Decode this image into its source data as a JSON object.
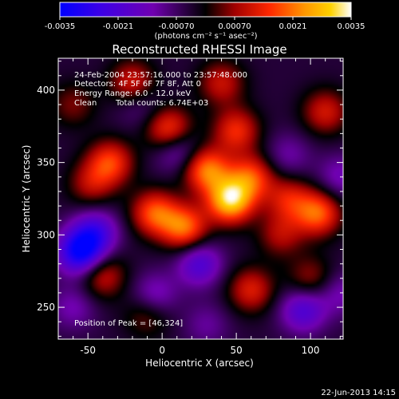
{
  "chart_data": {
    "type": "heatmap",
    "title": "Reconstructed RHESSI Image",
    "xlabel": "Heliocentric X (arcsec)",
    "ylabel": "Heliocentric Y (arcsec)",
    "xlim": [
      -70,
      122
    ],
    "ylim": [
      228,
      422
    ],
    "xticks": [
      -50,
      0,
      50,
      100
    ],
    "yticks": [
      250,
      300,
      350,
      400
    ],
    "colorbar": {
      "range": [
        -0.0035,
        0.0035
      ],
      "ticks": [
        "-0.0035",
        "-0.0021",
        "-0.00070",
        "0.00070",
        "0.0021",
        "0.0035"
      ],
      "unit_label": "(photons cm⁻² s⁻¹ asec⁻²)",
      "colors": [
        "#0000ff",
        "#5a00c8",
        "#7a00a8",
        "#000000",
        "#a00000",
        "#ff2800",
        "#ff9600",
        "#ffd200",
        "#ffffff"
      ]
    },
    "annotations": [
      "24-Feb-2004 23:57:16.000 to 23:57:48.000",
      "Detectors: 4F 5F 6F 7F 8F, Att 0",
      "Energy Range: 6.0 - 12.0 keV",
      "Clean",
      "Total counts: 6.74E+03"
    ],
    "peak_label": "Position of Peak = [46,324]",
    "peak": [
      46,
      324
    ],
    "sources": [
      {
        "x": 46,
        "y": 324,
        "v": 0.0034
      },
      {
        "x": 30,
        "y": 345,
        "v": 0.0025
      },
      {
        "x": 60,
        "y": 340,
        "v": 0.002
      },
      {
        "x": -5,
        "y": 315,
        "v": 0.0022
      },
      {
        "x": 15,
        "y": 305,
        "v": 0.0024
      },
      {
        "x": 105,
        "y": 315,
        "v": 0.0023
      },
      {
        "x": 85,
        "y": 325,
        "v": 0.0015
      },
      {
        "x": 5,
        "y": 372,
        "v": 0.0023
      },
      {
        "x": 50,
        "y": 372,
        "v": 0.0018
      },
      {
        "x": -35,
        "y": 350,
        "v": 0.002
      },
      {
        "x": -48,
        "y": 335,
        "v": 0.0012
      },
      {
        "x": -20,
        "y": 405,
        "v": 0.0016
      },
      {
        "x": 40,
        "y": 405,
        "v": 0.0014
      },
      {
        "x": 110,
        "y": 385,
        "v": 0.0015
      },
      {
        "x": -40,
        "y": 272,
        "v": 0.0015
      },
      {
        "x": 60,
        "y": 262,
        "v": 0.0016
      },
      {
        "x": 100,
        "y": 270,
        "v": 0.0011
      },
      {
        "x": -10,
        "y": 245,
        "v": 0.001
      },
      {
        "x": 80,
        "y": 300,
        "v": 0.0012
      },
      {
        "x": -60,
        "y": 390,
        "v": 0.0009
      },
      {
        "x": -55,
        "y": 288,
        "v": -0.003
      },
      {
        "x": -45,
        "y": 302,
        "v": -0.0018
      },
      {
        "x": 25,
        "y": 280,
        "v": -0.0017
      },
      {
        "x": 95,
        "y": 248,
        "v": -0.0017
      },
      {
        "x": 10,
        "y": 360,
        "v": -0.0015
      },
      {
        "x": -5,
        "y": 258,
        "v": -0.0012
      },
      {
        "x": 120,
        "y": 340,
        "v": -0.001
      },
      {
        "x": -60,
        "y": 250,
        "v": -0.0009
      },
      {
        "x": 120,
        "y": 260,
        "v": -0.0009
      },
      {
        "x": 85,
        "y": 355,
        "v": -0.0008
      },
      {
        "x": -15,
        "y": 390,
        "v": -0.0007
      },
      {
        "x": 30,
        "y": 238,
        "v": -0.0007
      }
    ]
  },
  "footer": {
    "timestamp": "22-Jun-2013 14:15"
  }
}
